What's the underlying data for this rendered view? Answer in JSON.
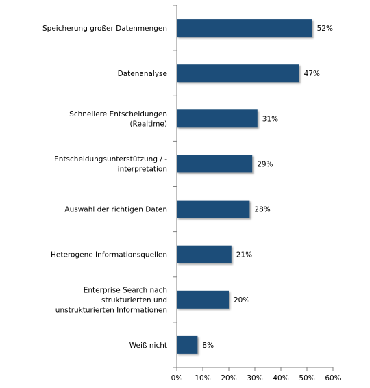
{
  "chart_data": {
    "type": "bar",
    "orientation": "horizontal",
    "title": "",
    "xlabel": "",
    "ylabel": "",
    "xlim": [
      0,
      60
    ],
    "x_ticks": [
      "0%",
      "10%",
      "20%",
      "30%",
      "40%",
      "50%",
      "60%"
    ],
    "grid": false,
    "bar_color": "#1f4e79",
    "categories": [
      [
        "Speicherung großer Datenmengen"
      ],
      [
        "Datenanalyse"
      ],
      [
        "Schnellere Entscheidungen",
        "(Realtime)"
      ],
      [
        "Entscheidungsunterstützung / -",
        "interpretation"
      ],
      [
        "Auswahl der richtigen Daten"
      ],
      [
        "Heterogene Informationsquellen"
      ],
      [
        "Enterprise Search nach",
        "strukturierten und",
        "unstrukturierten Informationen"
      ],
      [
        "Weiß nicht"
      ]
    ],
    "values": [
      52,
      47,
      31,
      29,
      28,
      21,
      20,
      8
    ],
    "value_labels": [
      "52%",
      "47%",
      "31%",
      "29%",
      "28%",
      "21%",
      "20%",
      "8%"
    ]
  }
}
